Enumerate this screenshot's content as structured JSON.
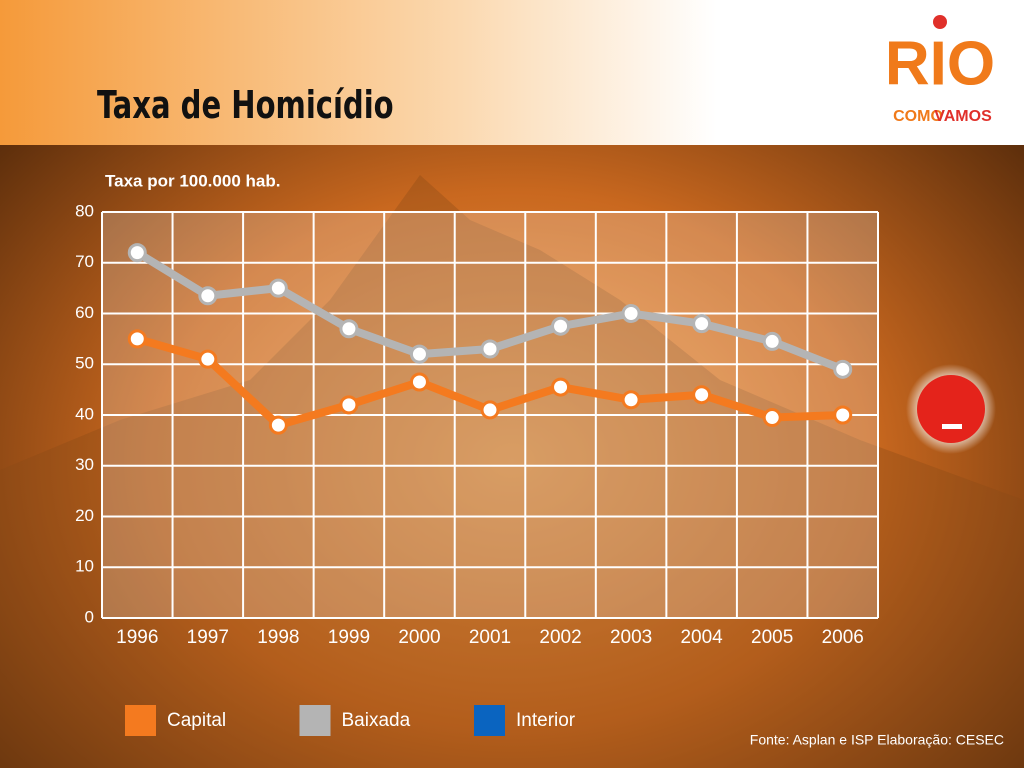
{
  "logo": {
    "top": "RIO",
    "bottom_left": "COMO",
    "bottom_right": "VAMOS"
  },
  "chart_data": {
    "type": "line",
    "title": "Taxa de Homicídio",
    "ylabel": "Taxa por 100.000 hab.",
    "source": "Fonte: Asplan e ISP Elaboração: CESEC",
    "categories": [
      "1996",
      "1997",
      "1998",
      "1999",
      "2000",
      "2001",
      "2002",
      "2003",
      "2004",
      "2005",
      "2006"
    ],
    "series": [
      {
        "name": "Capital",
        "color": "#f47a1f",
        "values": [
          55,
          51,
          38,
          42,
          46.5,
          41,
          45.5,
          43,
          44,
          39.5,
          40
        ]
      },
      {
        "name": "Baixada",
        "color": "#b4b4b4",
        "values": [
          72,
          63.5,
          65,
          57,
          52,
          53,
          57.5,
          60,
          58,
          54.5,
          49
        ]
      },
      {
        "name": "Interior",
        "color": "#0a64c0",
        "values": [
          null,
          null,
          null,
          null,
          null,
          null,
          null,
          null,
          null,
          null,
          null
        ]
      }
    ],
    "ylim": [
      0,
      80
    ],
    "yticks": [
      0,
      10,
      20,
      30,
      40,
      50,
      60,
      70,
      80
    ],
    "grid": true
  }
}
